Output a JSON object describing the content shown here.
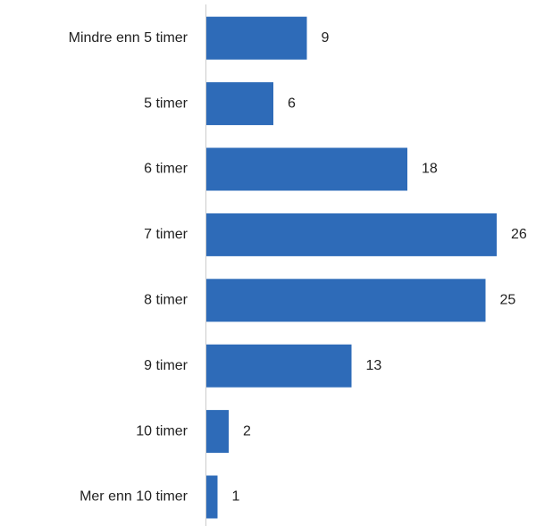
{
  "chart_data": {
    "type": "bar",
    "orientation": "horizontal",
    "categories": [
      "Mindre enn 5 timer",
      "5 timer",
      "6 timer",
      "7 timer",
      "8 timer",
      "9 timer",
      "10 timer",
      "Mer enn 10 timer"
    ],
    "values": [
      9,
      6,
      18,
      26,
      25,
      13,
      2,
      1
    ],
    "color": "#2e6bb8"
  }
}
